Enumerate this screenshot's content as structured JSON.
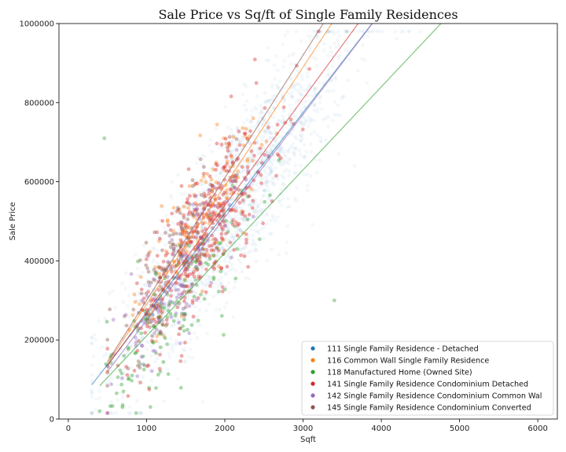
{
  "chart_data": {
    "type": "scatter",
    "title": "Sale Price vs Sq/ft of Single Family Residences",
    "xlabel": "Sqft",
    "ylabel": "Sale Price",
    "xlim": [
      -120,
      6250
    ],
    "ylim": [
      0,
      1000000
    ],
    "xticks": [
      "0",
      "1000",
      "2000",
      "3000",
      "4000",
      "5000",
      "6000"
    ],
    "yticks": [
      "0",
      "200000",
      "400000",
      "600000",
      "800000",
      "1000000"
    ],
    "legend_position": "lower-right",
    "grid": false,
    "series": [
      {
        "name": "111 Single Family Residence - Detached",
        "color": "#1f77b4",
        "alpha": 0.05,
        "count": 1700,
        "center": [
          2100,
          470000
        ],
        "spread": [
          750,
          150000
        ],
        "x_range": [
          300,
          6000
        ],
        "trend": {
          "slope": 255,
          "intercept": 10000
        }
      },
      {
        "name": "116 Common Wall Single Family Residence",
        "color": "#ff7f0e",
        "alpha": 0.4,
        "count": 170,
        "center": [
          1650,
          470000
        ],
        "spread": [
          400,
          110000
        ],
        "x_range": [
          500,
          3000
        ],
        "trend": {
          "slope": 300,
          "intercept": -10000
        }
      },
      {
        "name": "118 Manufactured Home (Owned Site)",
        "color": "#2ca02c",
        "alpha": 0.4,
        "count": 150,
        "center": [
          1400,
          260000
        ],
        "spread": [
          450,
          110000
        ],
        "x_range": [
          400,
          3500
        ],
        "trend": {
          "slope": 210,
          "intercept": 0
        },
        "extra_points": [
          [
            460,
            710000
          ],
          [
            3400,
            300000
          ]
        ]
      },
      {
        "name": "141 Single Family Residence Condominium Detached",
        "color": "#d62728",
        "alpha": 0.4,
        "count": 380,
        "center": [
          1750,
          460000
        ],
        "spread": [
          480,
          130000
        ],
        "x_range": [
          500,
          3200
        ],
        "trend": {
          "slope": 270,
          "intercept": 0
        }
      },
      {
        "name": "142 Single Family Residence Condominium Common Wal",
        "color": "#9467bd",
        "alpha": 0.4,
        "count": 130,
        "center": [
          1400,
          360000
        ],
        "spread": [
          380,
          100000
        ],
        "x_range": [
          500,
          2800
        ],
        "trend": {
          "slope": 260,
          "intercept": -10000
        }
      },
      {
        "name": "145 Single Family Residence Condominium Converted",
        "color": "#8c564b",
        "alpha": 0.4,
        "count": 130,
        "center": [
          1300,
          340000
        ],
        "spread": [
          380,
          100000
        ],
        "x_range": [
          500,
          2800
        ],
        "trend": {
          "slope": 310,
          "intercept": -10000
        }
      }
    ]
  }
}
